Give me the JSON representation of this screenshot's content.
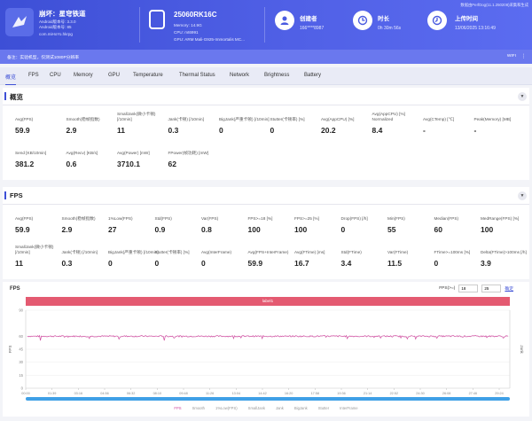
{
  "header": {
    "app_title": "崩坏：星穹铁道",
    "app_lines": [
      "Android版本号: 3.3.0",
      "Android版本号: 85",
      "com.miHoYo.hkrpg"
    ],
    "device_title": "25060RK16C",
    "device_lines": [
      "Memory: 14.9G",
      "CPU: mt6991",
      "GPU: ARM Mali-G925-Immortalis MC..."
    ],
    "creator_label": "创建者",
    "creator_value": "166****8987",
    "duration_label": "时长",
    "duration_value": "0h 30m 56s",
    "upload_label": "上传时间",
    "upload_value": "13/06/2025 13:16:49",
    "watermark": "数据由PerfDog(11.1.250208)采集和生成"
  },
  "notebar": {
    "note": "备注：实验机型，仅测试1080P分辨率",
    "right_label": "WIFI"
  },
  "tabs": [
    "概览",
    "FPS",
    "CPU",
    "Memory",
    "GPU",
    "Temperature",
    "Thermal Status",
    "Network",
    "Brightness",
    "Battery"
  ],
  "overview": {
    "title": "概览",
    "metrics": [
      {
        "label": "Avg(FPS)",
        "value": "59.9"
      },
      {
        "label": "Smooth(稳帧指数)",
        "value": "2.9"
      },
      {
        "label": "SmallJank(微小卡顿) [/10min]",
        "value": "11"
      },
      {
        "label": "Jank(卡顿) [/10min]",
        "value": "0.3"
      },
      {
        "label": "BigJank(严重卡顿) [/10min]",
        "value": "0"
      },
      {
        "label": "Stutter(卡顿率) [%]",
        "value": "0"
      },
      {
        "label": "Avg(AppCPU) [%]",
        "value": "20.2"
      },
      {
        "label": "Avg(AppCPU) [%] Normalized",
        "value": "8.4"
      },
      {
        "label": "Avg(CTemp) [℃]",
        "value": "-"
      },
      {
        "label": "Peak(Memory) [MB]",
        "value": "-"
      },
      {
        "label": "Send [KB/10min]",
        "value": "381.2"
      },
      {
        "label": "Avg(Recv) [KB/s]",
        "value": "0.6"
      },
      {
        "label": "Avg(Power) [mW]",
        "value": "3710.1"
      },
      {
        "label": "FPower(帧功耗) [mW]",
        "value": "62"
      }
    ]
  },
  "fps_section": {
    "title": "FPS",
    "metrics": [
      {
        "label": "Avg(FPS)",
        "value": "59.9"
      },
      {
        "label": "Smooth(稳帧指数)",
        "value": "2.9"
      },
      {
        "label": "1%Low(FPS)",
        "value": "27"
      },
      {
        "label": "Std(FPS)",
        "value": "0.9"
      },
      {
        "label": "Var(FPS)",
        "value": "0.8"
      },
      {
        "label": "FPS>=18 [%]",
        "value": "100"
      },
      {
        "label": "FPS>=25 [%]",
        "value": "100"
      },
      {
        "label": "Drop(FPS) [/h]",
        "value": "0"
      },
      {
        "label": "Min(FPS)",
        "value": "55"
      },
      {
        "label": "Median(FPS)",
        "value": "60"
      },
      {
        "label": "MedRange(FPS) [%]",
        "value": "100"
      },
      {
        "label": "SmallJank(微小卡顿) [/10min]",
        "value": "11"
      },
      {
        "label": "Jank(卡顿) [/10min]",
        "value": "0.3"
      },
      {
        "label": "BigJank(严重卡顿) [/10min]",
        "value": "0"
      },
      {
        "label": "Stutter(卡顿率) [%]",
        "value": "0"
      },
      {
        "label": "Avg(InterFrame)",
        "value": "0"
      },
      {
        "label": "Avg(FPS+InterFrame)",
        "value": "59.9"
      },
      {
        "label": "Avg(FTime) [ms]",
        "value": "16.7"
      },
      {
        "label": "Std(FTime)",
        "value": "3.4"
      },
      {
        "label": "Var(FTime)",
        "value": "11.5"
      },
      {
        "label": "FTime>=100ms [%]",
        "value": "0"
      },
      {
        "label": "Delta(FTime)>100ms [/h]",
        "value": "3.9"
      }
    ]
  },
  "fps_chart": {
    "title": "FPS",
    "threshold_label": "FPS(>=)",
    "threshold_low": "18",
    "threshold_high": "25",
    "apply_label": "确定",
    "label_bar": "label1",
    "y_ticks": [
      "90",
      "60",
      "45",
      "30",
      "15",
      "0"
    ],
    "y_axis_title": "FPS",
    "right_axis_title": "Jank",
    "x_ticks": [
      "00:00",
      "01:39",
      "03:16",
      "04:56",
      "06:32",
      "08:10",
      "09:48",
      "11:26",
      "13:04",
      "14:42",
      "16:20",
      "17:58",
      "19:36",
      "21:14",
      "22:52",
      "24:30",
      "26:08",
      "27:46",
      "29:24"
    ],
    "legend": [
      "FPS",
      "Smooth",
      "1%Low(FPS)",
      "SmallJank",
      "Jank",
      "BigJank",
      "Stutter",
      "InterFrame"
    ],
    "colors": {
      "fps": "#d04aa0",
      "band": "#e45a71",
      "scroll": "#3fa0e6"
    }
  },
  "chart_data": {
    "type": "line",
    "title": "FPS",
    "ylabel": "FPS",
    "ylim": [
      0,
      90
    ],
    "x_ticks": [
      "00:00",
      "01:39",
      "03:16",
      "04:56",
      "06:32",
      "08:10",
      "09:48",
      "11:26",
      "13:04",
      "14:42",
      "16:20",
      "17:58",
      "19:36",
      "21:14",
      "22:52",
      "24:30",
      "26:08",
      "27:46",
      "29:24"
    ],
    "series": [
      {
        "name": "FPS",
        "average": 59.9,
        "min": 55,
        "median": 60
      }
    ],
    "grid": true
  }
}
